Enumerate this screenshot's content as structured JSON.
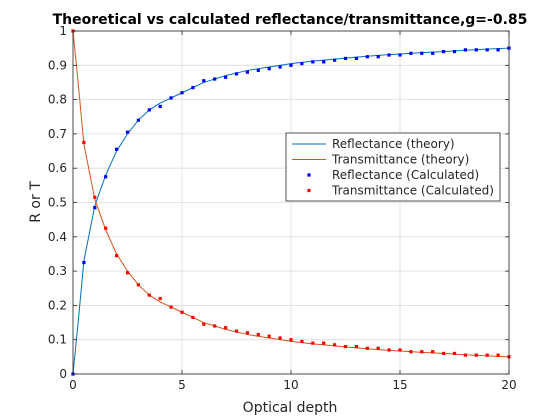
{
  "chart_data": {
    "type": "line",
    "title": "Theoretical vs calculated reflectance/transmittance,g=-0.85",
    "xlabel": "Optical depth",
    "ylabel": "R or T",
    "xlim": [
      0,
      20
    ],
    "ylim": [
      0,
      1
    ],
    "x_ticks": [
      0,
      5,
      10,
      15,
      20
    ],
    "y_ticks": [
      0,
      0.1,
      0.2,
      0.3,
      0.4,
      0.5,
      0.6,
      0.7,
      0.8,
      0.9,
      1
    ],
    "grid": true,
    "legend_position": "center-right",
    "series": [
      {
        "name": "Reflectance (theory)",
        "style": "line",
        "color": "#0072BD",
        "x": [
          0,
          0.25,
          0.5,
          0.75,
          1,
          1.5,
          2,
          2.5,
          3,
          3.5,
          4,
          5,
          6,
          7,
          8,
          9,
          10,
          11,
          12,
          13,
          14,
          15,
          16,
          17,
          18,
          19,
          20
        ],
        "y": [
          0,
          0.16,
          0.33,
          0.41,
          0.49,
          0.58,
          0.65,
          0.7,
          0.74,
          0.77,
          0.79,
          0.82,
          0.85,
          0.87,
          0.885,
          0.895,
          0.905,
          0.912,
          0.918,
          0.924,
          0.929,
          0.933,
          0.937,
          0.94,
          0.944,
          0.947,
          0.95
        ]
      },
      {
        "name": "Transmittance (theory)",
        "style": "line",
        "color": "#D95319",
        "x": [
          0,
          0.25,
          0.5,
          0.75,
          1,
          1.5,
          2,
          2.5,
          3,
          3.5,
          4,
          5,
          6,
          7,
          8,
          9,
          10,
          11,
          12,
          13,
          14,
          15,
          16,
          17,
          18,
          19,
          20
        ],
        "y": [
          1,
          0.84,
          0.67,
          0.59,
          0.51,
          0.42,
          0.35,
          0.3,
          0.26,
          0.23,
          0.21,
          0.18,
          0.15,
          0.13,
          0.115,
          0.105,
          0.095,
          0.088,
          0.082,
          0.076,
          0.071,
          0.067,
          0.063,
          0.06,
          0.056,
          0.053,
          0.05
        ]
      },
      {
        "name": "Reflectance (Calculated)",
        "style": "markers",
        "color": "#0000FF",
        "x": [
          0,
          0.5,
          1,
          1.5,
          2,
          2.5,
          3,
          3.5,
          4,
          4.5,
          5,
          5.5,
          6,
          6.5,
          7,
          7.5,
          8,
          8.5,
          9,
          9.5,
          10,
          10.5,
          11,
          11.5,
          12,
          12.5,
          13,
          13.5,
          14,
          14.5,
          15,
          15.5,
          16,
          16.5,
          17,
          17.5,
          18,
          18.5,
          19,
          19.5,
          20
        ],
        "y": [
          0,
          0.325,
          0.485,
          0.575,
          0.655,
          0.705,
          0.74,
          0.77,
          0.78,
          0.805,
          0.82,
          0.835,
          0.855,
          0.86,
          0.865,
          0.875,
          0.88,
          0.885,
          0.89,
          0.895,
          0.9,
          0.905,
          0.91,
          0.91,
          0.915,
          0.92,
          0.92,
          0.925,
          0.925,
          0.93,
          0.93,
          0.935,
          0.935,
          0.935,
          0.94,
          0.94,
          0.945,
          0.945,
          0.945,
          0.945,
          0.95
        ]
      },
      {
        "name": "Transmittance (Calculated)",
        "style": "markers",
        "color": "#FF0000",
        "x": [
          0,
          0.5,
          1,
          1.5,
          2,
          2.5,
          3,
          3.5,
          4,
          4.5,
          5,
          5.5,
          6,
          6.5,
          7,
          7.5,
          8,
          8.5,
          9,
          9.5,
          10,
          10.5,
          11,
          11.5,
          12,
          12.5,
          13,
          13.5,
          14,
          14.5,
          15,
          15.5,
          16,
          16.5,
          17,
          17.5,
          18,
          18.5,
          19,
          19.5,
          20
        ],
        "y": [
          1,
          0.675,
          0.515,
          0.425,
          0.345,
          0.295,
          0.26,
          0.23,
          0.22,
          0.195,
          0.18,
          0.165,
          0.145,
          0.14,
          0.135,
          0.125,
          0.12,
          0.115,
          0.11,
          0.105,
          0.1,
          0.095,
          0.09,
          0.09,
          0.085,
          0.08,
          0.08,
          0.075,
          0.075,
          0.07,
          0.07,
          0.065,
          0.065,
          0.065,
          0.06,
          0.06,
          0.055,
          0.055,
          0.055,
          0.055,
          0.05
        ]
      }
    ]
  }
}
